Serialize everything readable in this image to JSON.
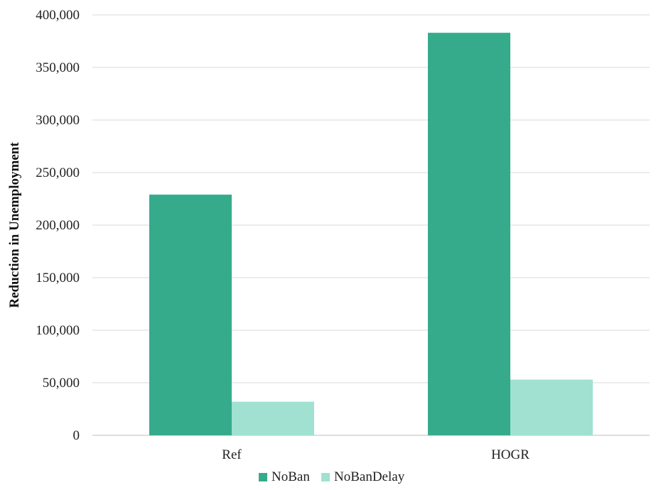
{
  "chart_data": {
    "type": "bar",
    "title": "",
    "xlabel": "",
    "ylabel": "Reduction in Unemployment",
    "ylim": [
      0,
      400000
    ],
    "yticks": [
      0,
      50000,
      100000,
      150000,
      200000,
      250000,
      300000,
      350000,
      400000
    ],
    "ytick_labels": [
      "0",
      "50,000",
      "100,000",
      "150,000",
      "200,000",
      "250,000",
      "300,000",
      "350,000",
      "400,000"
    ],
    "categories": [
      "Ref",
      "HOGR"
    ],
    "series": [
      {
        "name": "NoBan",
        "values": [
          229000,
          383000
        ],
        "color": "#35ab8c"
      },
      {
        "name": "NoBanDelay",
        "values": [
          32000,
          53000
        ],
        "color": "#a0e1d2"
      }
    ],
    "grid": true,
    "legend_position": "bottom"
  }
}
